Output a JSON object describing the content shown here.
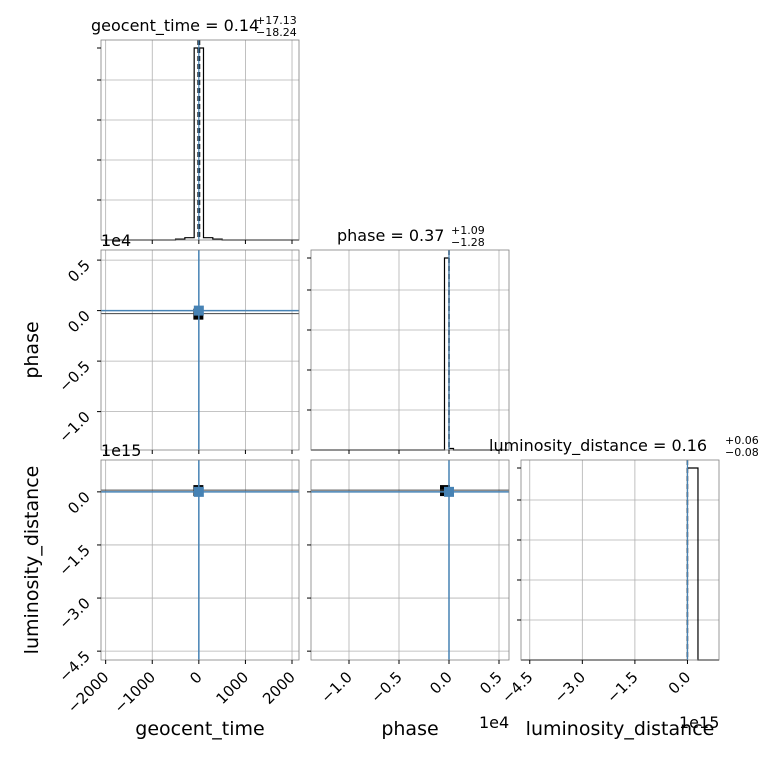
{
  "chart_data": {
    "type": "corner",
    "parameters": [
      "geocent_time",
      "phase",
      "luminosity_distance"
    ],
    "truth_color": "#4682b4",
    "hist_color": "#000000",
    "grid": true,
    "panels": {
      "geocent_time_hist": {
        "title_prefix": "geocent_time = 0.14",
        "title_plus": "+17.13",
        "title_minus": "−18.24",
        "xlim": [
          -2100,
          2150
        ],
        "median": 0.14,
        "quantiles": [
          -18.1,
          17.27
        ],
        "truth": 0,
        "steps": [
          {
            "x0": -2100,
            "x1": -500,
            "h": 0.0
          },
          {
            "x0": -500,
            "x1": -300,
            "h": 0.005
          },
          {
            "x0": -300,
            "x1": -100,
            "h": 0.012
          },
          {
            "x0": -100,
            "x1": 100,
            "h": 1.0
          },
          {
            "x0": 100,
            "x1": 300,
            "h": 0.012
          },
          {
            "x0": 300,
            "x1": 500,
            "h": 0.005
          },
          {
            "x0": 500,
            "x1": 2150,
            "h": 0.0
          }
        ]
      },
      "phase_hist": {
        "title_prefix": "phase = 0.37",
        "title_plus": "+1.09",
        "title_minus": "−1.28",
        "xlim": [
          -13800,
          6000
        ],
        "median": 0.37,
        "quantiles": [
          -0.91,
          1.46
        ],
        "truth": 0,
        "steps": [
          {
            "x0": -13800,
            "x1": -450,
            "h": 0.0
          },
          {
            "x0": -450,
            "x1": 0,
            "h": 1.0
          },
          {
            "x0": 0,
            "x1": 450,
            "h": 0.008
          },
          {
            "x0": 450,
            "x1": 6000,
            "h": 0.0
          }
        ]
      },
      "luminosity_distance_hist": {
        "title_prefix": "luminosity_distance = 0.16",
        "title_plus": "+0.06",
        "title_minus": "−0.08",
        "xlim": [
          -4750000000000000.0,
          900000000000000.0
        ],
        "median": 0.16,
        "quantiles": [
          0.08,
          0.22
        ],
        "truth": 0,
        "steps": [
          {
            "x0": -4750000000000000.0,
            "x1": 0,
            "h": 0.0
          },
          {
            "x0": 0,
            "x1": 300000000000000.0,
            "h": 1.0
          },
          {
            "x0": 300000000000000.0,
            "x1": 900000000000000.0,
            "h": 0.0
          }
        ]
      },
      "phase_vs_geocent_time": {
        "truth": [
          0,
          0
        ],
        "blob": [
          -10,
          -300
        ]
      },
      "luminosity_distance_vs_geocent_time": {
        "truth": [
          0,
          0
        ],
        "blob": [
          -10,
          50000000000000.0
        ]
      },
      "luminosity_distance_vs_phase": {
        "truth": [
          0,
          0
        ],
        "blob": [
          -400,
          50000000000000.0
        ]
      }
    },
    "axes": {
      "geocent_time": {
        "label": "geocent_time",
        "lim": [
          -2100,
          2150
        ],
        "ticks": [
          -2000,
          -1000,
          0,
          1000,
          2000
        ],
        "tick_labels": [
          "−2000",
          "−1000",
          "0",
          "1000",
          "2000"
        ]
      },
      "phase": {
        "label": "phase",
        "lim": [
          -13800,
          6000
        ],
        "ticks": [
          -10000,
          -5000,
          0,
          5000
        ],
        "tick_labels": [
          "−1.0",
          "−0.5",
          "0.0",
          "0.5"
        ],
        "offset_text": "1e4"
      },
      "luminosity_distance": {
        "label": "luminosity_distance",
        "lim": [
          -4750000000000000.0,
          900000000000000.0
        ],
        "ticks": [
          -4500000000000000.0,
          -3000000000000000.0,
          -1500000000000000.0,
          0
        ],
        "tick_labels": [
          "−4.5",
          "−3.0",
          "−1.5",
          "0.0"
        ],
        "offset_text": "1e15"
      }
    }
  }
}
